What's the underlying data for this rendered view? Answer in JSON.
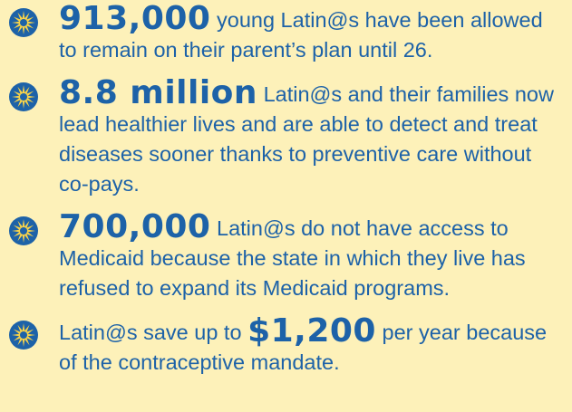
{
  "items": [
    {
      "highlight": "913,000",
      "after": "young Latin@s have been allowed to remain on their parent’s plan until 26."
    },
    {
      "highlight": "8.8 million",
      "after": "Latin@s and their families now lead healthier lives and are able to detect and treat diseases sooner thanks to preventive care without co-pays."
    },
    {
      "highlight": "700,000",
      "after": "Latin@s do not have access to Medicaid because the state in which they live has refused to expand its Medicaid programs."
    },
    {
      "before": "Latin@s save up to",
      "highlight": "$1,200",
      "after": "per year because of the contraceptive mandate."
    }
  ]
}
